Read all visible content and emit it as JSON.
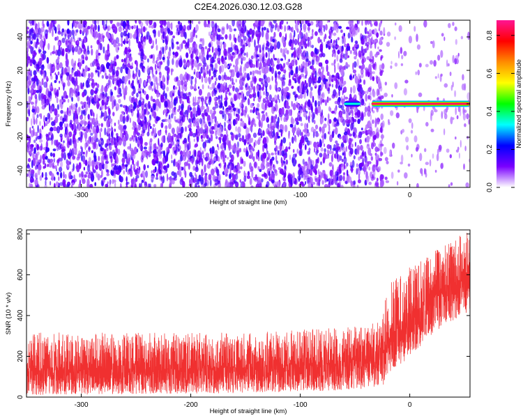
{
  "figure": {
    "title": "C2E4.2026.030.12.03.G28"
  },
  "chart_data": [
    {
      "type": "heatmap",
      "xlabel": "Height of straight line (km)",
      "ylabel": "Frequency (Hz)",
      "xlim": [
        -350,
        55
      ],
      "ylim": [
        -50,
        50
      ],
      "xticks": [
        -300,
        -200,
        -100,
        0
      ],
      "yticks": [
        -40,
        -20,
        0,
        20,
        40
      ],
      "colorbar": {
        "label": "Normalized spectral amplitude",
        "range": [
          0.0,
          0.88
        ],
        "ticks": [
          0.0,
          0.2,
          0.4,
          0.6,
          0.8
        ],
        "colors": [
          "#ffffff",
          "#7a00ff",
          "#0000ff",
          "#00ffff",
          "#00ff00",
          "#ffff00",
          "#ff8c00",
          "#ff0000",
          "#ff1493"
        ]
      },
      "noise_region": {
        "x_range": [
          -350,
          -40
        ],
        "freq_range": [
          -50,
          50
        ],
        "amplitude_range": [
          0.0,
          0.15
        ]
      },
      "transition_region": {
        "x_range": [
          -40,
          -25
        ],
        "amplitude_range": [
          0.0,
          0.08
        ]
      },
      "tone_segments": [
        {
          "x_start": -60,
          "x_end": -45,
          "freq": 0,
          "amplitude": 0.35
        },
        {
          "x_start": -35,
          "x_end": 55,
          "freq": 0,
          "amplitude": 0.85
        }
      ],
      "grid": false
    },
    {
      "type": "line",
      "xlabel": "Height of straight line (km)",
      "ylabel": "SNR (10 * v/v)",
      "xlim": [
        -350,
        55
      ],
      "ylim": [
        0,
        820
      ],
      "xticks": [
        -300,
        -200,
        -100,
        0
      ],
      "yticks": [
        0,
        200,
        400,
        600,
        800
      ],
      "color": "#f03030",
      "envelope": [
        {
          "x": -350,
          "lower": 10,
          "mean": 130,
          "upper": 300
        },
        {
          "x": -250,
          "lower": 15,
          "mean": 135,
          "upper": 300
        },
        {
          "x": -150,
          "lower": 20,
          "mean": 145,
          "upper": 300
        },
        {
          "x": -80,
          "lower": 30,
          "mean": 160,
          "upper": 320
        },
        {
          "x": -40,
          "lower": 40,
          "mean": 180,
          "upper": 340
        },
        {
          "x": -25,
          "lower": 50,
          "mean": 200,
          "upper": 360
        },
        {
          "x": -20,
          "lower": 100,
          "mean": 300,
          "upper": 550
        },
        {
          "x": 0,
          "lower": 200,
          "mean": 400,
          "upper": 620
        },
        {
          "x": 30,
          "lower": 350,
          "mean": 520,
          "upper": 720
        },
        {
          "x": 55,
          "lower": 420,
          "mean": 580,
          "upper": 800
        }
      ],
      "grid": false
    }
  ]
}
